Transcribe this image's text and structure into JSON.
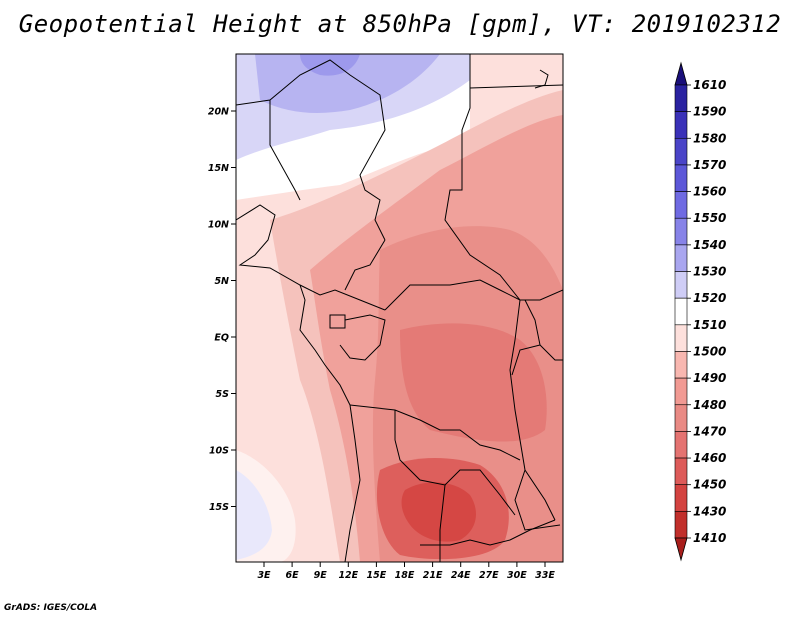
{
  "title": "Geopotential Height at 850hPa [gpm], VT: 2019102312",
  "credit": "GrADS: IGES/COLA",
  "map": {
    "lon_labels": [
      "3E",
      "6E",
      "9E",
      "12E",
      "15E",
      "18E",
      "21E",
      "24E",
      "27E",
      "30E",
      "33E"
    ],
    "lat_labels": [
      "20N",
      "15N",
      "10N",
      "5N",
      "EQ",
      "5S",
      "10S",
      "15S"
    ]
  },
  "colorbar": {
    "levels": [
      "1610",
      "1590",
      "1580",
      "1570",
      "1560",
      "1550",
      "1540",
      "1530",
      "1520",
      "1510",
      "1500",
      "1490",
      "1480",
      "1470",
      "1460",
      "1450",
      "1430",
      "1410"
    ],
    "colors": [
      "#1a0f7a",
      "#2a22a0",
      "#3a31b8",
      "#4a44c8",
      "#5c57d8",
      "#6f6ae2",
      "#8783e8",
      "#a9a6ef",
      "#cfcdf6",
      "#ffffff",
      "#fde0dc",
      "#f8b7b0",
      "#f19a93",
      "#e98a84",
      "#e47371",
      "#dd5b59",
      "#d34340",
      "#c12f2b",
      "#a81e1b"
    ]
  },
  "colors": {
    "frame": "#000000",
    "border_lines": "#000000"
  }
}
